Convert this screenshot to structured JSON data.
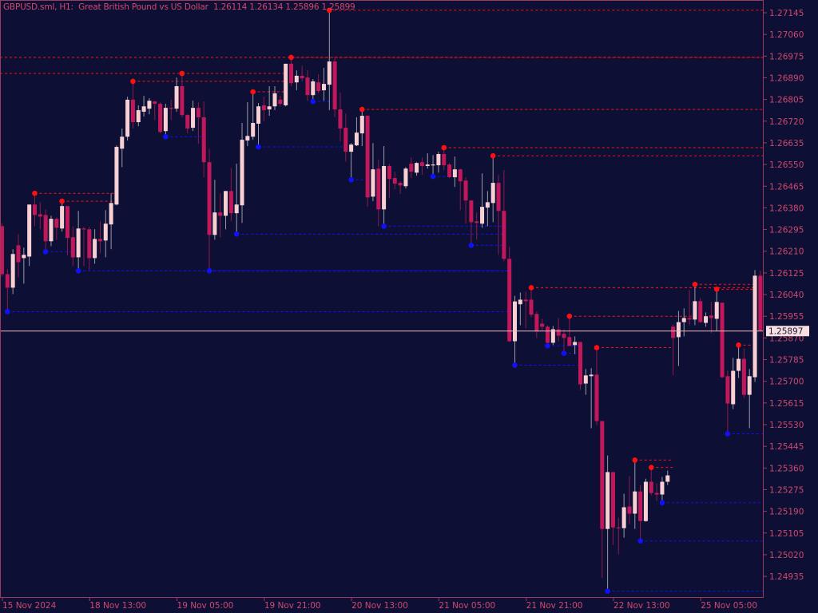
{
  "header": {
    "symbol": "GBPUSD.sml",
    "timeframe": "H1:",
    "description": "Great British Pound vs US Dollar",
    "ohlc_text": "1.26114 1.26134 1.25896 1.25899"
  },
  "colors": {
    "background": "#0d1034",
    "bull_body": "#f8cfd2",
    "bear_body": "#c2185b",
    "bull_wick": "#9a9aa8",
    "bear_wick": "#8e1a4a",
    "text": "#d0486e",
    "frame": "#9c3a5e",
    "price_line": "#e8b8bc",
    "fractal_high": "#ff1010",
    "fractal_low": "#1010ff"
  },
  "chart_data": {
    "type": "candlestick",
    "title": "GBPUSD.sml, H1:  Great British Pound vs US Dollar",
    "ylim": [
      1.24854,
      1.27195
    ],
    "grid": false,
    "current_price": "1.25897",
    "y_ticks": [
      "1.27145",
      "1.27060",
      "1.26975",
      "1.26890",
      "1.26805",
      "1.26720",
      "1.26635",
      "1.26550",
      "1.26465",
      "1.26380",
      "1.26295",
      "1.26210",
      "1.26125",
      "1.26040",
      "1.25955",
      "1.25870",
      "1.25785",
      "1.25700",
      "1.25615",
      "1.25530",
      "1.25445",
      "1.25360",
      "1.25275",
      "1.25190",
      "1.25105",
      "1.25020",
      "1.24935"
    ],
    "x_ticks": [
      {
        "index": 0,
        "label": "15 Nov 2024"
      },
      {
        "index": 16,
        "label": "18 Nov 13:00"
      },
      {
        "index": 32,
        "label": "19 Nov 05:00"
      },
      {
        "index": 48,
        "label": "19 Nov 21:00"
      },
      {
        "index": 64,
        "label": "20 Nov 13:00"
      },
      {
        "index": 80,
        "label": "21 Nov 05:00"
      },
      {
        "index": 96,
        "label": "21 Nov 21:00"
      },
      {
        "index": 112,
        "label": "22 Nov 13:00"
      },
      {
        "index": 128,
        "label": "25 Nov 05:00"
      }
    ],
    "ohlc": [
      [
        1.26308,
        1.2632,
        1.2611,
        1.2612
      ],
      [
        1.2612,
        1.26139,
        1.25973,
        1.26067
      ],
      [
        1.26067,
        1.26218,
        1.26042,
        1.26199
      ],
      [
        1.26233,
        1.26277,
        1.26108,
        1.26167
      ],
      [
        1.26183,
        1.26224,
        1.26083,
        1.26196
      ],
      [
        1.26189,
        1.26393,
        1.26152,
        1.26393
      ],
      [
        1.26393,
        1.26437,
        1.26308,
        1.26352
      ],
      [
        1.26355,
        1.26402,
        1.26296,
        1.26346
      ],
      [
        1.26352,
        1.26374,
        1.26208,
        1.26249
      ],
      [
        1.26249,
        1.26349,
        1.2623,
        1.26337
      ],
      [
        1.26337,
        1.26343,
        1.26255,
        1.26302
      ],
      [
        1.26299,
        1.26406,
        1.26287,
        1.26387
      ],
      [
        1.26387,
        1.26387,
        1.26193,
        1.26262
      ],
      [
        1.26265,
        1.26308,
        1.26152,
        1.26186
      ],
      [
        1.26186,
        1.26368,
        1.26133,
        1.26299
      ],
      [
        1.26299,
        1.26305,
        1.26152,
        1.26296
      ],
      [
        1.26296,
        1.26305,
        1.26136,
        1.26183
      ],
      [
        1.26183,
        1.26296,
        1.26161,
        1.26258
      ],
      [
        1.26258,
        1.26327,
        1.26202,
        1.26249
      ],
      [
        1.26252,
        1.26371,
        1.26186,
        1.26318
      ],
      [
        1.26315,
        1.26437,
        1.26218,
        1.26399
      ],
      [
        1.26393,
        1.26625,
        1.2639,
        1.26619
      ],
      [
        1.26612,
        1.26691,
        1.2654,
        1.26659
      ],
      [
        1.26659,
        1.26816,
        1.26644,
        1.26804
      ],
      [
        1.26804,
        1.26876,
        1.26691,
        1.26716
      ],
      [
        1.26716,
        1.26782,
        1.267,
        1.26763
      ],
      [
        1.26757,
        1.26819,
        1.26738,
        1.26778
      ],
      [
        1.26769,
        1.2681,
        1.26747,
        1.268
      ],
      [
        1.26797,
        1.268,
        1.26725,
        1.26788
      ],
      [
        1.26788,
        1.26794,
        1.26672,
        1.26678
      ],
      [
        1.26681,
        1.26788,
        1.26659,
        1.26772
      ],
      [
        1.26772,
        1.26804,
        1.26725,
        1.26769
      ],
      [
        1.26769,
        1.26891,
        1.26757,
        1.26857
      ],
      [
        1.26857,
        1.26907,
        1.26735,
        1.26744
      ],
      [
        1.26744,
        1.26747,
        1.26672,
        1.26691
      ],
      [
        1.26694,
        1.268,
        1.26681,
        1.26772
      ],
      [
        1.26772,
        1.26794,
        1.26631,
        1.26735
      ],
      [
        1.26735,
        1.26797,
        1.265,
        1.26559
      ],
      [
        1.26559,
        1.26612,
        1.26133,
        1.26274
      ],
      [
        1.26274,
        1.2649,
        1.26255,
        1.26362
      ],
      [
        1.26362,
        1.26437,
        1.26265,
        1.26349
      ],
      [
        1.26349,
        1.26446,
        1.26296,
        1.26446
      ],
      [
        1.26446,
        1.26537,
        1.26327,
        1.26359
      ],
      [
        1.26359,
        1.26553,
        1.26277,
        1.26393
      ],
      [
        1.2639,
        1.26713,
        1.26321,
        1.26647
      ],
      [
        1.26644,
        1.26794,
        1.26622,
        1.26662
      ],
      [
        1.26659,
        1.26835,
        1.26647,
        1.26713
      ],
      [
        1.2671,
        1.26791,
        1.26619,
        1.26778
      ],
      [
        1.26782,
        1.26816,
        1.26719,
        1.26763
      ],
      [
        1.26766,
        1.26857,
        1.26741,
        1.26778
      ],
      [
        1.26778,
        1.26857,
        1.26763,
        1.26829
      ],
      [
        1.26804,
        1.26819,
        1.26778,
        1.26788
      ],
      [
        1.26782,
        1.26945,
        1.26778,
        1.26945
      ],
      [
        1.26945,
        1.2697,
        1.26857,
        1.26869
      ],
      [
        1.26872,
        1.26919,
        1.26841,
        1.26898
      ],
      [
        1.26898,
        1.26938,
        1.26876,
        1.26888
      ],
      [
        1.26891,
        1.26919,
        1.268,
        1.26822
      ],
      [
        1.26822,
        1.26885,
        1.26797,
        1.26876
      ],
      [
        1.26872,
        1.26904,
        1.26829,
        1.26838
      ],
      [
        1.26841,
        1.26929,
        1.268,
        1.26866
      ],
      [
        1.26863,
        1.27155,
        1.26763,
        1.26954
      ],
      [
        1.26954,
        1.2697,
        1.26735,
        1.26766
      ],
      [
        1.26766,
        1.26832,
        1.26641,
        1.26691
      ],
      [
        1.26694,
        1.2675,
        1.26562,
        1.266
      ],
      [
        1.266,
        1.26634,
        1.2649,
        1.26628
      ],
      [
        1.26625,
        1.26735,
        1.26622,
        1.26675
      ],
      [
        1.26672,
        1.26766,
        1.26622,
        1.26741
      ],
      [
        1.26741,
        1.26741,
        1.26384,
        1.26421
      ],
      [
        1.26424,
        1.26634,
        1.26406,
        1.26531
      ],
      [
        1.26534,
        1.26569,
        1.26308,
        1.26374
      ],
      [
        1.26374,
        1.26622,
        1.26308,
        1.26544
      ],
      [
        1.26544,
        1.26553,
        1.26418,
        1.26493
      ],
      [
        1.26497,
        1.26522,
        1.26453,
        1.26475
      ],
      [
        1.26478,
        1.26484,
        1.26434,
        1.26468
      ],
      [
        1.26465,
        1.2654,
        1.26456,
        1.26534
      ],
      [
        1.26553,
        1.26578,
        1.26497,
        1.26522
      ],
      [
        1.26518,
        1.26559,
        1.26506,
        1.26556
      ],
      [
        1.26559,
        1.26578,
        1.26509,
        1.26544
      ],
      [
        1.26544,
        1.26594,
        1.26534,
        1.2655
      ],
      [
        1.26547,
        1.26587,
        1.26503,
        1.2655
      ],
      [
        1.26547,
        1.266,
        1.26518,
        1.26591
      ],
      [
        1.26591,
        1.26616,
        1.26528,
        1.26547
      ],
      [
        1.2655,
        1.26556,
        1.26497,
        1.265
      ],
      [
        1.265,
        1.26581,
        1.26462,
        1.26531
      ],
      [
        1.26531,
        1.26534,
        1.26371,
        1.26484
      ],
      [
        1.26487,
        1.265,
        1.26318,
        1.26409
      ],
      [
        1.26409,
        1.26409,
        1.26233,
        1.26324
      ],
      [
        1.26327,
        1.26362,
        1.26255,
        1.26321
      ],
      [
        1.26318,
        1.26515,
        1.26302,
        1.26384
      ],
      [
        1.26381,
        1.26446,
        1.26308,
        1.26402
      ],
      [
        1.26399,
        1.26584,
        1.26324,
        1.26478
      ],
      [
        1.26478,
        1.26509,
        1.26196,
        1.26368
      ],
      [
        1.26368,
        1.26528,
        1.26171,
        1.2618
      ],
      [
        1.2618,
        1.26227,
        1.25854,
        1.25857
      ],
      [
        1.25857,
        1.26035,
        1.25763,
        1.26013
      ],
      [
        1.26002,
        1.26048,
        1.2592,
        1.2602
      ],
      [
        1.2602,
        1.26052,
        1.25908,
        1.26014
      ],
      [
        1.2602,
        1.26067,
        1.25951,
        1.25961
      ],
      [
        1.25964,
        1.25973,
        1.2587,
        1.25895
      ],
      [
        1.25926,
        1.25945,
        1.25898,
        1.25914
      ],
      [
        1.25914,
        1.2592,
        1.25839,
        1.25851
      ],
      [
        1.25851,
        1.25917,
        1.25842,
        1.25904
      ],
      [
        1.25904,
        1.25948,
        1.25857,
        1.25879
      ],
      [
        1.25886,
        1.25904,
        1.2581,
        1.2587
      ],
      [
        1.25873,
        1.25955,
        1.25839,
        1.25839
      ],
      [
        1.25842,
        1.25876,
        1.25807,
        1.25854
      ],
      [
        1.25854,
        1.25854,
        1.25666,
        1.25688
      ],
      [
        1.25691,
        1.25748,
        1.25647,
        1.25723
      ],
      [
        1.2572,
        1.25751,
        1.25516,
        1.25726
      ],
      [
        1.25726,
        1.25832,
        1.25528,
        1.25544
      ],
      [
        1.25544,
        1.25544,
        1.2493,
        1.25121
      ],
      [
        1.25121,
        1.25409,
        1.24877,
        1.25344
      ],
      [
        1.25344,
        1.25344,
        1.25058,
        1.25127
      ],
      [
        1.25127,
        1.25165,
        1.25021,
        1.25124
      ],
      [
        1.25124,
        1.25259,
        1.25087,
        1.25206
      ],
      [
        1.25209,
        1.25328,
        1.2514,
        1.25181
      ],
      [
        1.25181,
        1.25391,
        1.25121,
        1.25268
      ],
      [
        1.25268,
        1.25293,
        1.25074,
        1.25152
      ],
      [
        1.25152,
        1.25318,
        1.25149,
        1.25306
      ],
      [
        1.25306,
        1.25362,
        1.25253,
        1.25262
      ],
      [
        1.25262,
        1.253,
        1.25231,
        1.25256
      ],
      [
        1.25256,
        1.25325,
        1.25224,
        1.25306
      ],
      [
        1.25306,
        1.2535,
        1.25293,
        1.25331
      ],
      [
        1.25914,
        1.25923,
        1.25723,
        1.2587
      ],
      [
        1.25873,
        1.25976,
        1.2576,
        1.25932
      ],
      [
        1.25932,
        1.25986,
        1.25876,
        1.25948
      ],
      [
        1.25948,
        1.26058,
        1.2592,
        1.25942
      ],
      [
        1.25942,
        1.2608,
        1.2592,
        1.26014
      ],
      [
        1.26014,
        1.26026,
        1.25929,
        1.25932
      ],
      [
        1.25929,
        1.2597,
        1.25914,
        1.25955
      ],
      [
        1.25958,
        1.26011,
        1.25889,
        1.25948
      ],
      [
        1.25945,
        1.26061,
        1.25898,
        1.26011
      ],
      [
        1.26008,
        1.26008,
        1.25713,
        1.25716
      ],
      [
        1.2572,
        1.25741,
        1.25494,
        1.25613
      ],
      [
        1.2561,
        1.25792,
        1.25591,
        1.25741
      ],
      [
        1.25741,
        1.25842,
        1.25713,
        1.25788
      ],
      [
        1.25788,
        1.25829,
        1.25635,
        1.25647
      ],
      [
        1.25647,
        1.25748,
        1.25516,
        1.2572
      ],
      [
        1.25716,
        1.26136,
        1.25698,
        1.26114
      ],
      [
        1.26114,
        1.26134,
        1.25896,
        1.25899
      ]
    ],
    "fractal_highs": [
      6,
      11,
      24,
      33,
      46,
      53,
      60,
      66,
      81,
      90,
      97,
      104,
      109,
      116,
      119,
      127,
      131,
      135
    ],
    "fractal_lows": [
      1,
      8,
      14,
      30,
      38,
      43,
      47,
      57,
      64,
      70,
      79,
      86,
      94,
      100,
      103,
      111,
      117,
      121,
      133
    ],
    "prior_resistance": [
      1.2697,
      1.26907
    ]
  }
}
